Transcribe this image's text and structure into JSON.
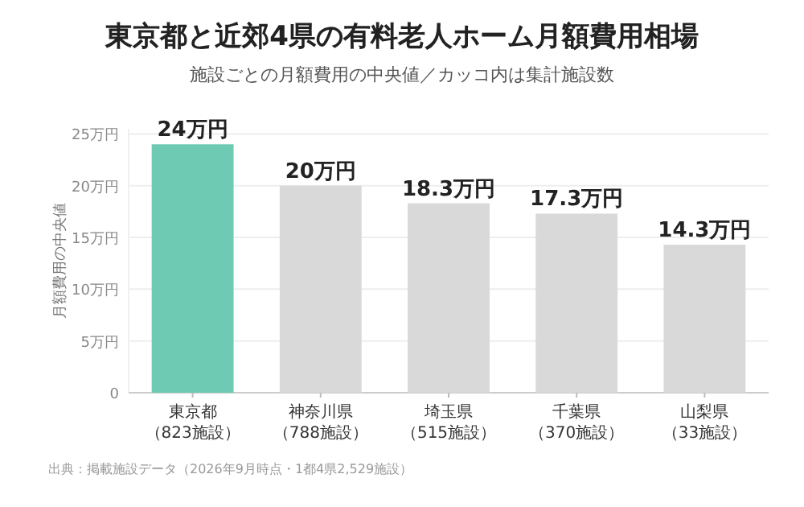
{
  "chart_data": {
    "type": "bar",
    "title": "東京都と近郊4県の有料老人ホーム月額費用相場",
    "subtitle": "施設ごとの月額費用の中央値／カッコ内は集計施設数",
    "ylabel": "月額費用の中央値",
    "categories": [
      "東京都（823施設）",
      "神奈川県（788施設）",
      "埼玉県（515施設）",
      "千葉県（370施設）",
      "山梨県（33施設）"
    ],
    "values": [
      24,
      20,
      18.3,
      17.3,
      14.3
    ],
    "colors": [
      "#6fcab3",
      "#d9d9d9",
      "#d9d9d9",
      "#d9d9d9",
      "#d9d9d9"
    ],
    "value_labels": [
      "24万円",
      "20万円",
      "18.3万円",
      "17.3万円",
      "14.3万円"
    ],
    "ylim": [
      0,
      25.5
    ],
    "yticks": [
      0,
      {
        "value": 5,
        "label": "5万円"
      },
      {
        "value": 10,
        "label": "10万円"
      },
      {
        "value": 15,
        "label": "15万円"
      },
      {
        "value": 20,
        "label": "20万円"
      },
      {
        "value": 25,
        "label": "25万円"
      }
    ],
    "grid": "y",
    "annotations": [
      "出典：掲載施設データ（2026年9月時点・1都4県2,529施設）"
    ]
  }
}
